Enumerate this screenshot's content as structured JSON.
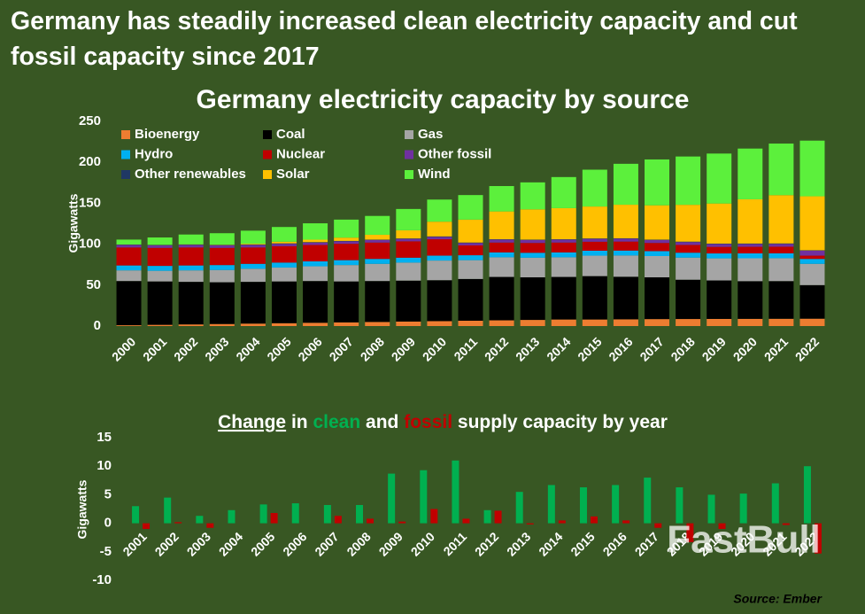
{
  "headline": "Germany has steadily increased clean electricity capacity and cut fossil capacity since 2017",
  "source": "Source: Ember",
  "watermark": "FastBull",
  "chart_data": [
    {
      "type": "stacked_bar",
      "title": "Germany electricity capacity by source",
      "y_label": "Gigawatts",
      "categories": [
        "2000",
        "2001",
        "2002",
        "2003",
        "2004",
        "2005",
        "2006",
        "2007",
        "2008",
        "2009",
        "2010",
        "2011",
        "2012",
        "2013",
        "2014",
        "2015",
        "2016",
        "2017",
        "2018",
        "2019",
        "2020",
        "2021",
        "2022"
      ],
      "ylim": [
        0,
        250
      ],
      "yticks": [
        0,
        50,
        100,
        150,
        200,
        250
      ],
      "grid": false,
      "legend": "top-left",
      "series": [
        {
          "name": "Bioenergy",
          "color": "#ed7d31",
          "values": [
            1,
            1.5,
            2,
            2.5,
            3,
            3.5,
            4,
            4.5,
            5,
            5.5,
            6,
            6.5,
            7,
            7.5,
            8,
            8,
            8.2,
            8.5,
            8.6,
            8.7,
            8.8,
            8.9,
            9
          ]
        },
        {
          "name": "Coal",
          "color": "#000000",
          "values": [
            54,
            53,
            52,
            51,
            51,
            51,
            51,
            50,
            50,
            50,
            50,
            51,
            53,
            52,
            52,
            53,
            52,
            51,
            48,
            47,
            46,
            46,
            41
          ]
        },
        {
          "name": "Gas",
          "color": "#a5a5a5",
          "values": [
            13,
            13,
            14,
            15,
            16,
            17,
            18,
            20,
            21,
            22,
            24,
            23,
            24,
            24,
            24,
            25,
            26,
            26,
            27,
            27,
            28,
            28,
            26
          ]
        },
        {
          "name": "Hydro",
          "color": "#00b0f0",
          "values": [
            6,
            6,
            6,
            6,
            6,
            6,
            6,
            6,
            6,
            6,
            6,
            6,
            6,
            6,
            6,
            6,
            6,
            6,
            6,
            6,
            6,
            6,
            6
          ]
        },
        {
          "name": "Nuclear",
          "color": "#c00000",
          "values": [
            22,
            22,
            22,
            21,
            20,
            20,
            20,
            20,
            20,
            20,
            20,
            12,
            12,
            12,
            12,
            11,
            11,
            10,
            9.5,
            8,
            8,
            8,
            4
          ]
        },
        {
          "name": "Other fossil",
          "color": "#7030a0",
          "values": [
            3,
            3,
            3,
            3,
            3,
            3,
            3,
            3,
            3,
            3,
            3,
            3,
            3.5,
            3.5,
            3.5,
            3.5,
            3.5,
            3.5,
            3.5,
            3.5,
            3.5,
            3.5,
            6
          ]
        },
        {
          "name": "Other renewables",
          "color": "#1f3864",
          "values": [
            0.5,
            0.5,
            0.5,
            0.5,
            0.5,
            0.5,
            0.5,
            0.5,
            0.5,
            0.5,
            0.5,
            0.5,
            0.5,
            0.5,
            0.5,
            0.5,
            0.5,
            0.5,
            0.5,
            0.5,
            0.5,
            0.5,
            0.5
          ]
        },
        {
          "name": "Solar",
          "color": "#ffc000",
          "values": [
            0.1,
            0.2,
            0.3,
            0.4,
            1,
            2,
            3,
            4,
            6,
            10,
            18,
            28,
            34,
            37,
            38,
            39,
            41,
            42,
            45,
            49,
            54,
            59,
            66
          ]
        },
        {
          "name": "Wind",
          "color": "#5cf03c",
          "values": [
            6,
            9,
            12,
            14,
            16,
            18,
            20,
            22,
            23,
            26,
            27,
            30,
            31,
            33,
            38,
            45,
            50,
            56,
            59,
            61,
            62,
            63,
            68
          ]
        }
      ]
    },
    {
      "type": "bar",
      "title_parts": [
        "Change",
        "in",
        "and",
        "supply capacity by year"
      ],
      "y_label": "Gigawatts",
      "categories": [
        "2001",
        "2002",
        "2003",
        "2004",
        "2005",
        "2006",
        "2007",
        "2008",
        "2009",
        "2010",
        "2011",
        "2012",
        "2013",
        "2014",
        "2015",
        "2016",
        "2017",
        "2018",
        "2019",
        "2020",
        "2021",
        "2022"
      ],
      "ylim": [
        -10,
        15
      ],
      "yticks": [
        -10,
        -5,
        0,
        5,
        10,
        15
      ],
      "grid": false,
      "series": [
        {
          "name": "clean",
          "color": "#00b050",
          "values": [
            3,
            4.5,
            1.3,
            2.3,
            3.3,
            3.5,
            3.2,
            3.2,
            8.7,
            9.3,
            11,
            2.3,
            5.5,
            6.7,
            6.3,
            6.7,
            8,
            6.3,
            5,
            5.2,
            7,
            10
          ]
        },
        {
          "name": "fossil",
          "color": "#c00000",
          "values": [
            -1,
            0.2,
            -0.8,
            0,
            1.8,
            0,
            1.3,
            0.8,
            0.3,
            2.5,
            0.8,
            2.2,
            -0.2,
            0.5,
            1.2,
            0.5,
            -0.8,
            -3.3,
            -1,
            0,
            -0.3,
            -5.3
          ]
        }
      ]
    }
  ]
}
